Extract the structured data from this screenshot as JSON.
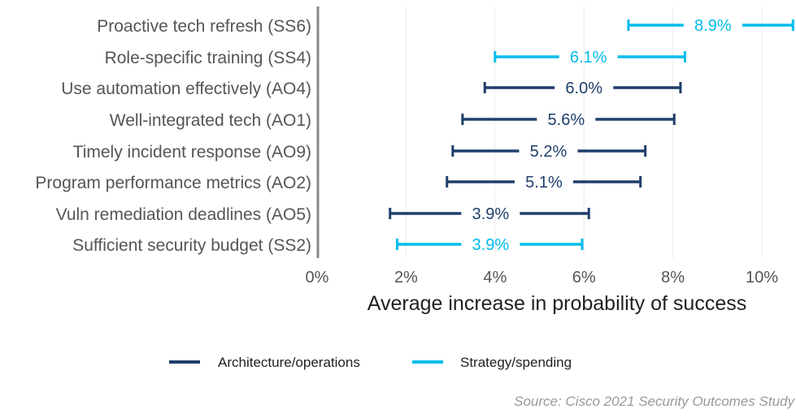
{
  "chart_data": {
    "type": "interval",
    "xlabel": "Average increase in probability of success",
    "ylabel": "",
    "xlim": [
      0,
      10.7
    ],
    "xticks": [
      "0%",
      "2%",
      "4%",
      "6%",
      "8%",
      "10%"
    ],
    "xtick_values": [
      0,
      2,
      4,
      6,
      8,
      10
    ],
    "grid": "vertical",
    "legend_position": "bottom",
    "series_colors": {
      "Architecture/operations": "#1f3e6b",
      "Strategy/spending": "#00bceb"
    },
    "legend": [
      "Architecture/operations",
      "Strategy/spending"
    ],
    "rows": [
      {
        "label": "Proactive tech refresh (SS6)",
        "series": "Strategy/spending",
        "value": 8.9,
        "value_label": "8.9%",
        "low": 7.0,
        "high": 10.7
      },
      {
        "label": "Role-specific training (SS4)",
        "series": "Strategy/spending",
        "value": 6.1,
        "value_label": "6.1%",
        "low": 4.0,
        "high": 8.27
      },
      {
        "label": "Use automation effectively (AO4)",
        "series": "Architecture/operations",
        "value": 6.0,
        "value_label": "6.0%",
        "low": 3.77,
        "high": 8.17
      },
      {
        "label": "Well-integrated tech (AO1)",
        "series": "Architecture/operations",
        "value": 5.6,
        "value_label": "5.6%",
        "low": 3.27,
        "high": 8.03
      },
      {
        "label": "Timely incident response (AO9)",
        "series": "Architecture/operations",
        "value": 5.2,
        "value_label": "5.2%",
        "low": 3.05,
        "high": 7.38
      },
      {
        "label": "Program performance metrics (AO2)",
        "series": "Architecture/operations",
        "value": 5.1,
        "value_label": "5.1%",
        "low": 2.92,
        "high": 7.27
      },
      {
        "label": "Vuln remediation deadlines (AO5)",
        "series": "Architecture/operations",
        "value": 3.9,
        "value_label": "3.9%",
        "low": 1.64,
        "high": 6.11
      },
      {
        "label": "Sufficient security budget (SS2)",
        "series": "Strategy/spending",
        "value": 3.9,
        "value_label": "3.9%",
        "low": 1.8,
        "high": 5.96
      }
    ]
  },
  "source": "Source: Cisco 2021 Security Outcomes Study"
}
